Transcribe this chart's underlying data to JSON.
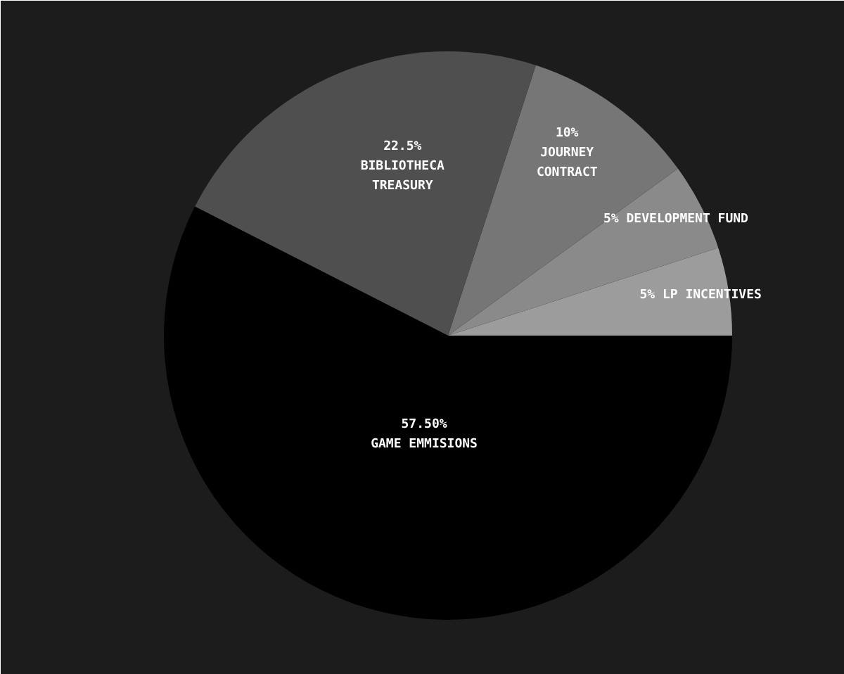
{
  "chart_data": {
    "type": "pie",
    "categories": [
      "LP INCENTIVES",
      "DEVELOPMENT FUND",
      "JOURNEY CONTRACT",
      "BIBLIOTHECA TREASURY",
      "GAME EMMISIONS"
    ],
    "values": [
      5,
      5,
      10,
      22.5,
      57.5
    ],
    "value_labels": [
      "5%",
      "5%",
      "10%",
      "22.5%",
      "57.50%"
    ],
    "colors": [
      "#9c9c9c",
      "#8a8a8a",
      "#767676",
      "#4f4f4f",
      "#000000"
    ],
    "legend": false
  }
}
